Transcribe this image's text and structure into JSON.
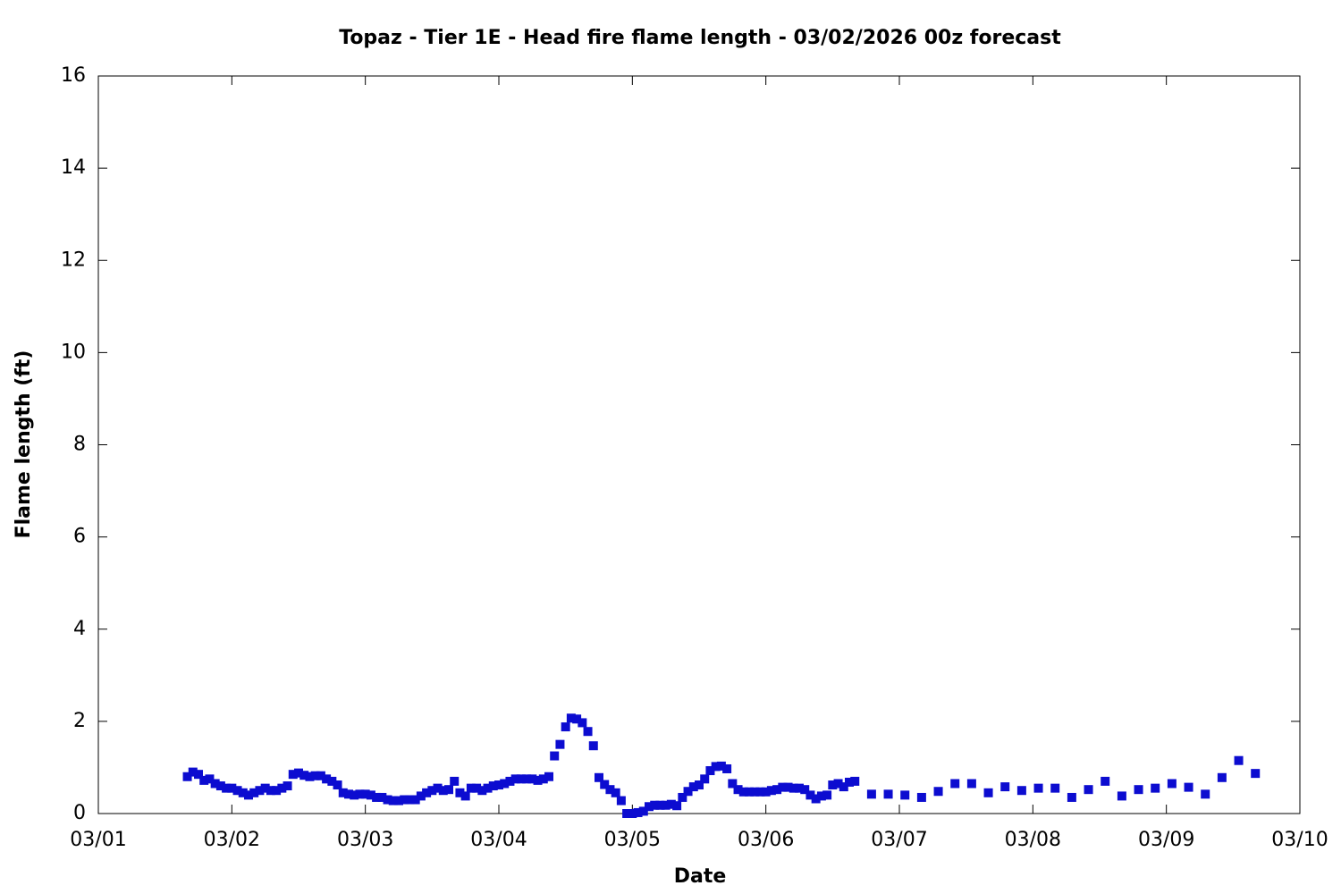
{
  "chart_data": {
    "type": "scatter",
    "title": "Topaz - Tier 1E - Head fire flame length - 03/02/2026 00z forecast",
    "x_label": "Date",
    "y_label": "Flame length (ft)",
    "color": "#0c0cd0",
    "xlim": [
      0,
      216
    ],
    "xticks": [
      {
        "value": 0,
        "label": "03/01"
      },
      {
        "value": 24,
        "label": "03/02"
      },
      {
        "value": 48,
        "label": "03/03"
      },
      {
        "value": 72,
        "label": "03/04"
      },
      {
        "value": 96,
        "label": "03/05"
      },
      {
        "value": 120,
        "label": "03/06"
      },
      {
        "value": 144,
        "label": "03/07"
      },
      {
        "value": 168,
        "label": "03/08"
      },
      {
        "value": 192,
        "label": "03/09"
      },
      {
        "value": 216,
        "label": "03/10"
      }
    ],
    "ylim": [
      0,
      16
    ],
    "yticks": [
      0,
      2,
      4,
      6,
      8,
      10,
      12,
      14,
      16
    ],
    "x": [
      16,
      17,
      18,
      19,
      20,
      21,
      22,
      23,
      24,
      25,
      26,
      27,
      28,
      29,
      30,
      31,
      32,
      33,
      34,
      35,
      36,
      37,
      38,
      39,
      40,
      41,
      42,
      43,
      44,
      45,
      46,
      47,
      48,
      49,
      50,
      51,
      52,
      53,
      54,
      55,
      56,
      57,
      58,
      59,
      60,
      61,
      62,
      63,
      64,
      65,
      66,
      67,
      68,
      69,
      70,
      71,
      72,
      73,
      74,
      75,
      76,
      77,
      78,
      79,
      80,
      81,
      82,
      83,
      84,
      85,
      86,
      87,
      88,
      89,
      90,
      91,
      92,
      93,
      94,
      95,
      96,
      97,
      98,
      99,
      100,
      101,
      102,
      103,
      104,
      105,
      106,
      107,
      108,
      109,
      110,
      111,
      112,
      113,
      114,
      115,
      116,
      117,
      118,
      119,
      120,
      121,
      122,
      123,
      124,
      125,
      126,
      127,
      128,
      129,
      130,
      131,
      132,
      133,
      134,
      135,
      136,
      139,
      142,
      145,
      148,
      151,
      154,
      157,
      160,
      163,
      166,
      169,
      172,
      175,
      178,
      181,
      184,
      187,
      190,
      193,
      196,
      199,
      202,
      205,
      208
    ],
    "values": [
      0.8,
      0.9,
      0.85,
      0.72,
      0.75,
      0.65,
      0.6,
      0.55,
      0.55,
      0.5,
      0.45,
      0.4,
      0.45,
      0.5,
      0.55,
      0.5,
      0.5,
      0.55,
      0.6,
      0.85,
      0.88,
      0.83,
      0.8,
      0.82,
      0.82,
      0.75,
      0.7,
      0.62,
      0.45,
      0.42,
      0.4,
      0.42,
      0.42,
      0.4,
      0.35,
      0.35,
      0.3,
      0.28,
      0.28,
      0.3,
      0.3,
      0.3,
      0.38,
      0.45,
      0.5,
      0.55,
      0.5,
      0.52,
      0.7,
      0.45,
      0.38,
      0.55,
      0.55,
      0.5,
      0.55,
      0.6,
      0.62,
      0.65,
      0.7,
      0.75,
      0.75,
      0.75,
      0.75,
      0.72,
      0.75,
      0.8,
      1.25,
      1.5,
      1.88,
      2.07,
      2.05,
      1.97,
      1.78,
      1.47,
      0.78,
      0.63,
      0.52,
      0.45,
      0.28,
      0.0,
      0.0,
      0.02,
      0.05,
      0.15,
      0.18,
      0.18,
      0.18,
      0.2,
      0.17,
      0.35,
      0.48,
      0.58,
      0.62,
      0.75,
      0.93,
      1.02,
      1.03,
      0.97,
      0.65,
      0.52,
      0.47,
      0.47,
      0.47,
      0.47,
      0.47,
      0.5,
      0.52,
      0.57,
      0.57,
      0.55,
      0.55,
      0.52,
      0.4,
      0.32,
      0.38,
      0.4,
      0.62,
      0.65,
      0.58,
      0.68,
      0.7,
      0.42,
      0.42,
      0.4,
      0.35,
      0.48,
      0.65,
      0.65,
      0.45,
      0.58,
      0.5,
      0.55,
      0.55,
      0.35,
      0.52,
      0.7,
      0.38,
      0.52,
      0.55,
      0.65,
      0.57,
      0.42,
      0.78,
      1.15,
      0.87
    ]
  }
}
